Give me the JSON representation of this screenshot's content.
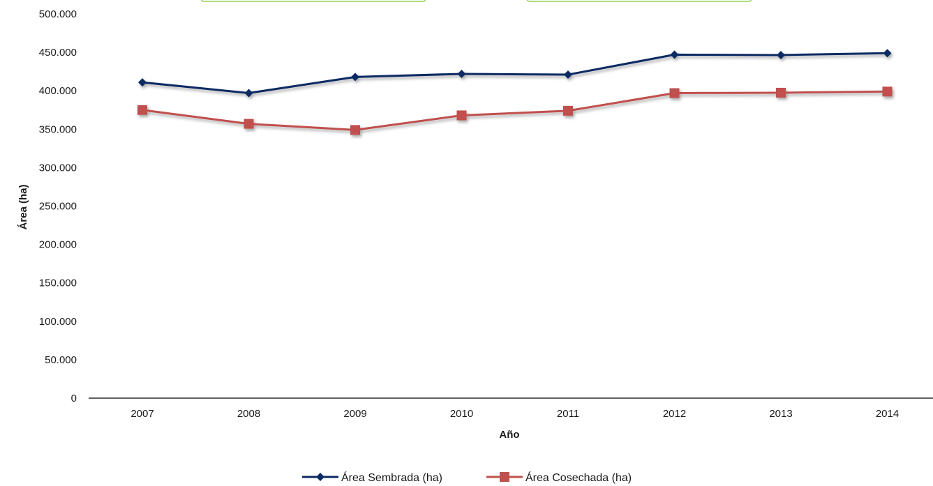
{
  "chart_data": {
    "type": "line",
    "title": "",
    "xlabel": "Año",
    "ylabel": "Área (ha)",
    "ylim": [
      0,
      500000
    ],
    "yticks": [
      0,
      50000,
      100000,
      150000,
      200000,
      250000,
      300000,
      350000,
      400000,
      450000,
      500000
    ],
    "ytick_labels": [
      "0",
      "50.000",
      "100.000",
      "150.000",
      "200.000",
      "250.000",
      "300.000",
      "350.000",
      "400.000",
      "450.000",
      "500.000"
    ],
    "categories": [
      "2007",
      "2008",
      "2009",
      "2010",
      "2011",
      "2012",
      "2013",
      "2014"
    ],
    "grid": false,
    "legend_position": "bottom",
    "series": [
      {
        "name": "Área Sembrada (ha)",
        "marker": "diamond",
        "color": "#0b2a63",
        "values": [
          411000,
          397000,
          418000,
          422000,
          421000,
          447000,
          446500,
          449000
        ]
      },
      {
        "name": "Área Cosechada (ha)",
        "marker": "square",
        "color": "#c0504d",
        "values": [
          375000,
          357000,
          349000,
          368000,
          374000,
          397000,
          397500,
          399000
        ]
      }
    ],
    "top_boxes_color": "#92d050"
  }
}
